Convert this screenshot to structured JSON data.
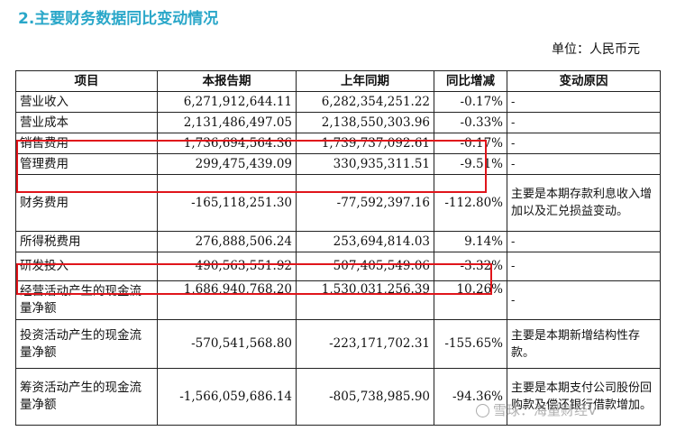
{
  "title": "2.主要财务数据同比变动情况",
  "unit_label": "单位：人民币元",
  "table": {
    "headers": [
      "项目",
      "本报告期",
      "上年同期",
      "同比增减",
      "变动原因"
    ],
    "rows": [
      {
        "item": "营业收入",
        "current": "6,271,912,644.11",
        "previous": "6,282,354,251.22",
        "change": "-0.17%",
        "reason": "-"
      },
      {
        "item": "营业成本",
        "current": "2,131,486,497.05",
        "previous": "2,138,550,303.96",
        "change": "-0.33%",
        "reason": "-"
      },
      {
        "item": "销售费用",
        "current": "1,736,694,564.36",
        "previous": "1,739,737,092.61",
        "change": "-0.17%",
        "reason": "-"
      },
      {
        "item": "管理费用",
        "current": "299,475,439.09",
        "previous": "330,935,311.51",
        "change": "-9.51%",
        "reason": "-"
      },
      {
        "item": "财务费用",
        "current": "-165,118,251.30",
        "previous": "-77,592,397.16",
        "change": "-112.80%",
        "reason": "主要是本期存款利息收入增加以及汇兑损益变动。"
      },
      {
        "item": "所得税费用",
        "current": "276,888,506.24",
        "previous": "253,694,814.03",
        "change": "9.14%",
        "reason": "-"
      },
      {
        "item": "研发投入",
        "current": "490,563,551.92",
        "previous": "507,405,549.06",
        "change": "-3.32%",
        "reason": "-"
      },
      {
        "item": "经营活动产生的现金流量净额",
        "current": "1,686,940,768.20",
        "previous": "1,530,031,256.39",
        "change": "10.26%",
        "reason": "-"
      },
      {
        "item": "投资活动产生的现金流量净额",
        "current": "-570,541,568.80",
        "previous": "-223,171,702.31",
        "change": "-155.65%",
        "reason": "主要是本期新增结构性存款。"
      },
      {
        "item": "筹资活动产生的现金流量净额",
        "current": "-1,566,059,686.14",
        "previous": "-805,738,985.90",
        "change": "-94.36%",
        "reason": "主要是本期支付公司股份回购款及偿还银行借款增加。"
      }
    ]
  },
  "highlight_color": "#e0151b",
  "watermark": "雪球：海量财经V"
}
